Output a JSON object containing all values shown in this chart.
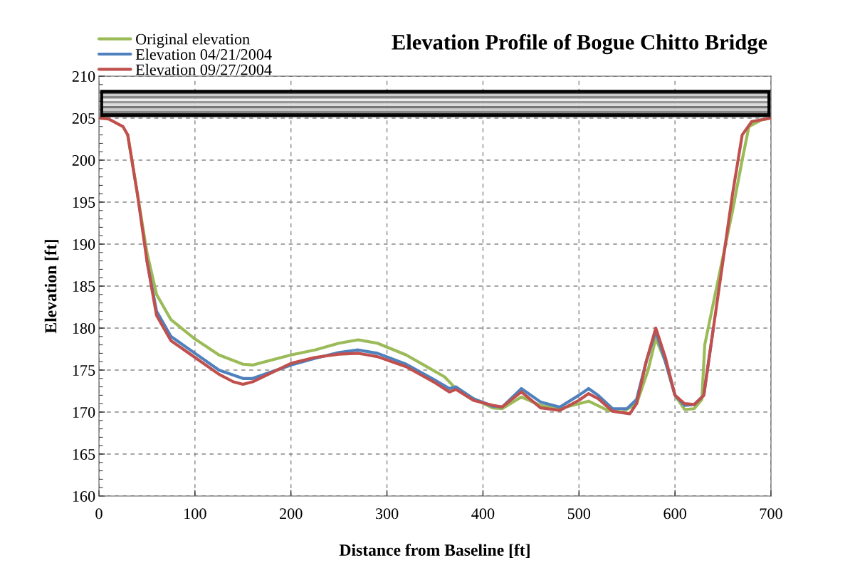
{
  "chart_data": {
    "type": "line",
    "title": "Elevation Profile of Bogue Chitto Bridge",
    "xlabel": "Distance from Baseline [ft]",
    "ylabel": "Elevation [ft]",
    "xlim": [
      0,
      700
    ],
    "xticks": [
      0,
      100,
      200,
      300,
      400,
      500,
      600,
      700
    ],
    "ylim": [
      160,
      210
    ],
    "yticks": [
      160,
      165,
      170,
      175,
      180,
      185,
      190,
      195,
      200,
      205,
      210
    ],
    "grid": true,
    "legend": "top left",
    "marker": "none",
    "line_style": "solid",
    "series": [
      {
        "name": "Original elevation",
        "color": "#9bbb59",
        "x": [
          30,
          40,
          50,
          60,
          75,
          100,
          125,
          150,
          160,
          200,
          225,
          250,
          270,
          290,
          320,
          340,
          360,
          370,
          390,
          410,
          420,
          440,
          460,
          480,
          500,
          510,
          530,
          545,
          560,
          572,
          580,
          590,
          600,
          610,
          620,
          628,
          631,
          640,
          660,
          670,
          677,
          690,
          700
        ],
        "values": [
          203,
          196,
          189,
          184,
          181,
          178.7,
          176.8,
          175.7,
          175.6,
          176.8,
          177.4,
          178.2,
          178.6,
          178.2,
          176.8,
          175.5,
          174.2,
          173,
          171.6,
          170.5,
          170.4,
          171.8,
          170.8,
          170.4,
          171,
          171.3,
          170.2,
          170,
          171,
          175,
          178.8,
          176,
          172,
          170.3,
          170.4,
          171.5,
          178,
          183,
          194,
          200,
          204,
          204.8,
          205
        ]
      },
      {
        "name": "Elevation 04/21/2004",
        "color": "#4f81bd",
        "x": [
          50,
          60,
          75,
          100,
          125,
          150,
          160,
          200,
          225,
          250,
          270,
          290,
          320,
          350,
          365,
          372,
          390,
          410,
          420,
          440,
          460,
          480,
          500,
          510,
          520,
          535,
          550,
          560,
          570,
          580,
          590,
          600,
          610,
          620,
          630,
          640
        ],
        "values": [
          188,
          182,
          179,
          177,
          175,
          174,
          174,
          175.6,
          176.4,
          177.1,
          177.4,
          177,
          175.7,
          173.8,
          172.8,
          173,
          171.6,
          170.7,
          170.6,
          172.8,
          171.2,
          170.6,
          172,
          172.8,
          172,
          170.4,
          170.4,
          171.5,
          176,
          179.6,
          176,
          172,
          170.8,
          170.9,
          172,
          180
        ]
      },
      {
        "name": "Elevation 09/27/2004",
        "color": "#c0504d",
        "x": [
          0,
          10,
          25,
          30,
          40,
          50,
          60,
          75,
          100,
          125,
          140,
          150,
          160,
          200,
          225,
          250,
          270,
          290,
          320,
          350,
          365,
          372,
          390,
          410,
          420,
          440,
          460,
          480,
          500,
          510,
          520,
          535,
          553,
          560,
          570,
          580,
          590,
          600,
          610,
          620,
          630,
          640,
          650,
          660,
          670,
          680,
          700
        ],
        "values": [
          205,
          204.9,
          204,
          203,
          196,
          188,
          181.5,
          178.5,
          176.5,
          174.5,
          173.6,
          173.3,
          173.6,
          175.8,
          176.5,
          176.9,
          177,
          176.6,
          175.4,
          173.5,
          172.4,
          172.7,
          171.4,
          170.8,
          170.6,
          172.4,
          170.5,
          170.2,
          171.4,
          172.2,
          171.6,
          170.1,
          169.8,
          171,
          176,
          180,
          176.5,
          172,
          171,
          170.9,
          172,
          180,
          188,
          196,
          203,
          204.6,
          205
        ]
      }
    ]
  }
}
